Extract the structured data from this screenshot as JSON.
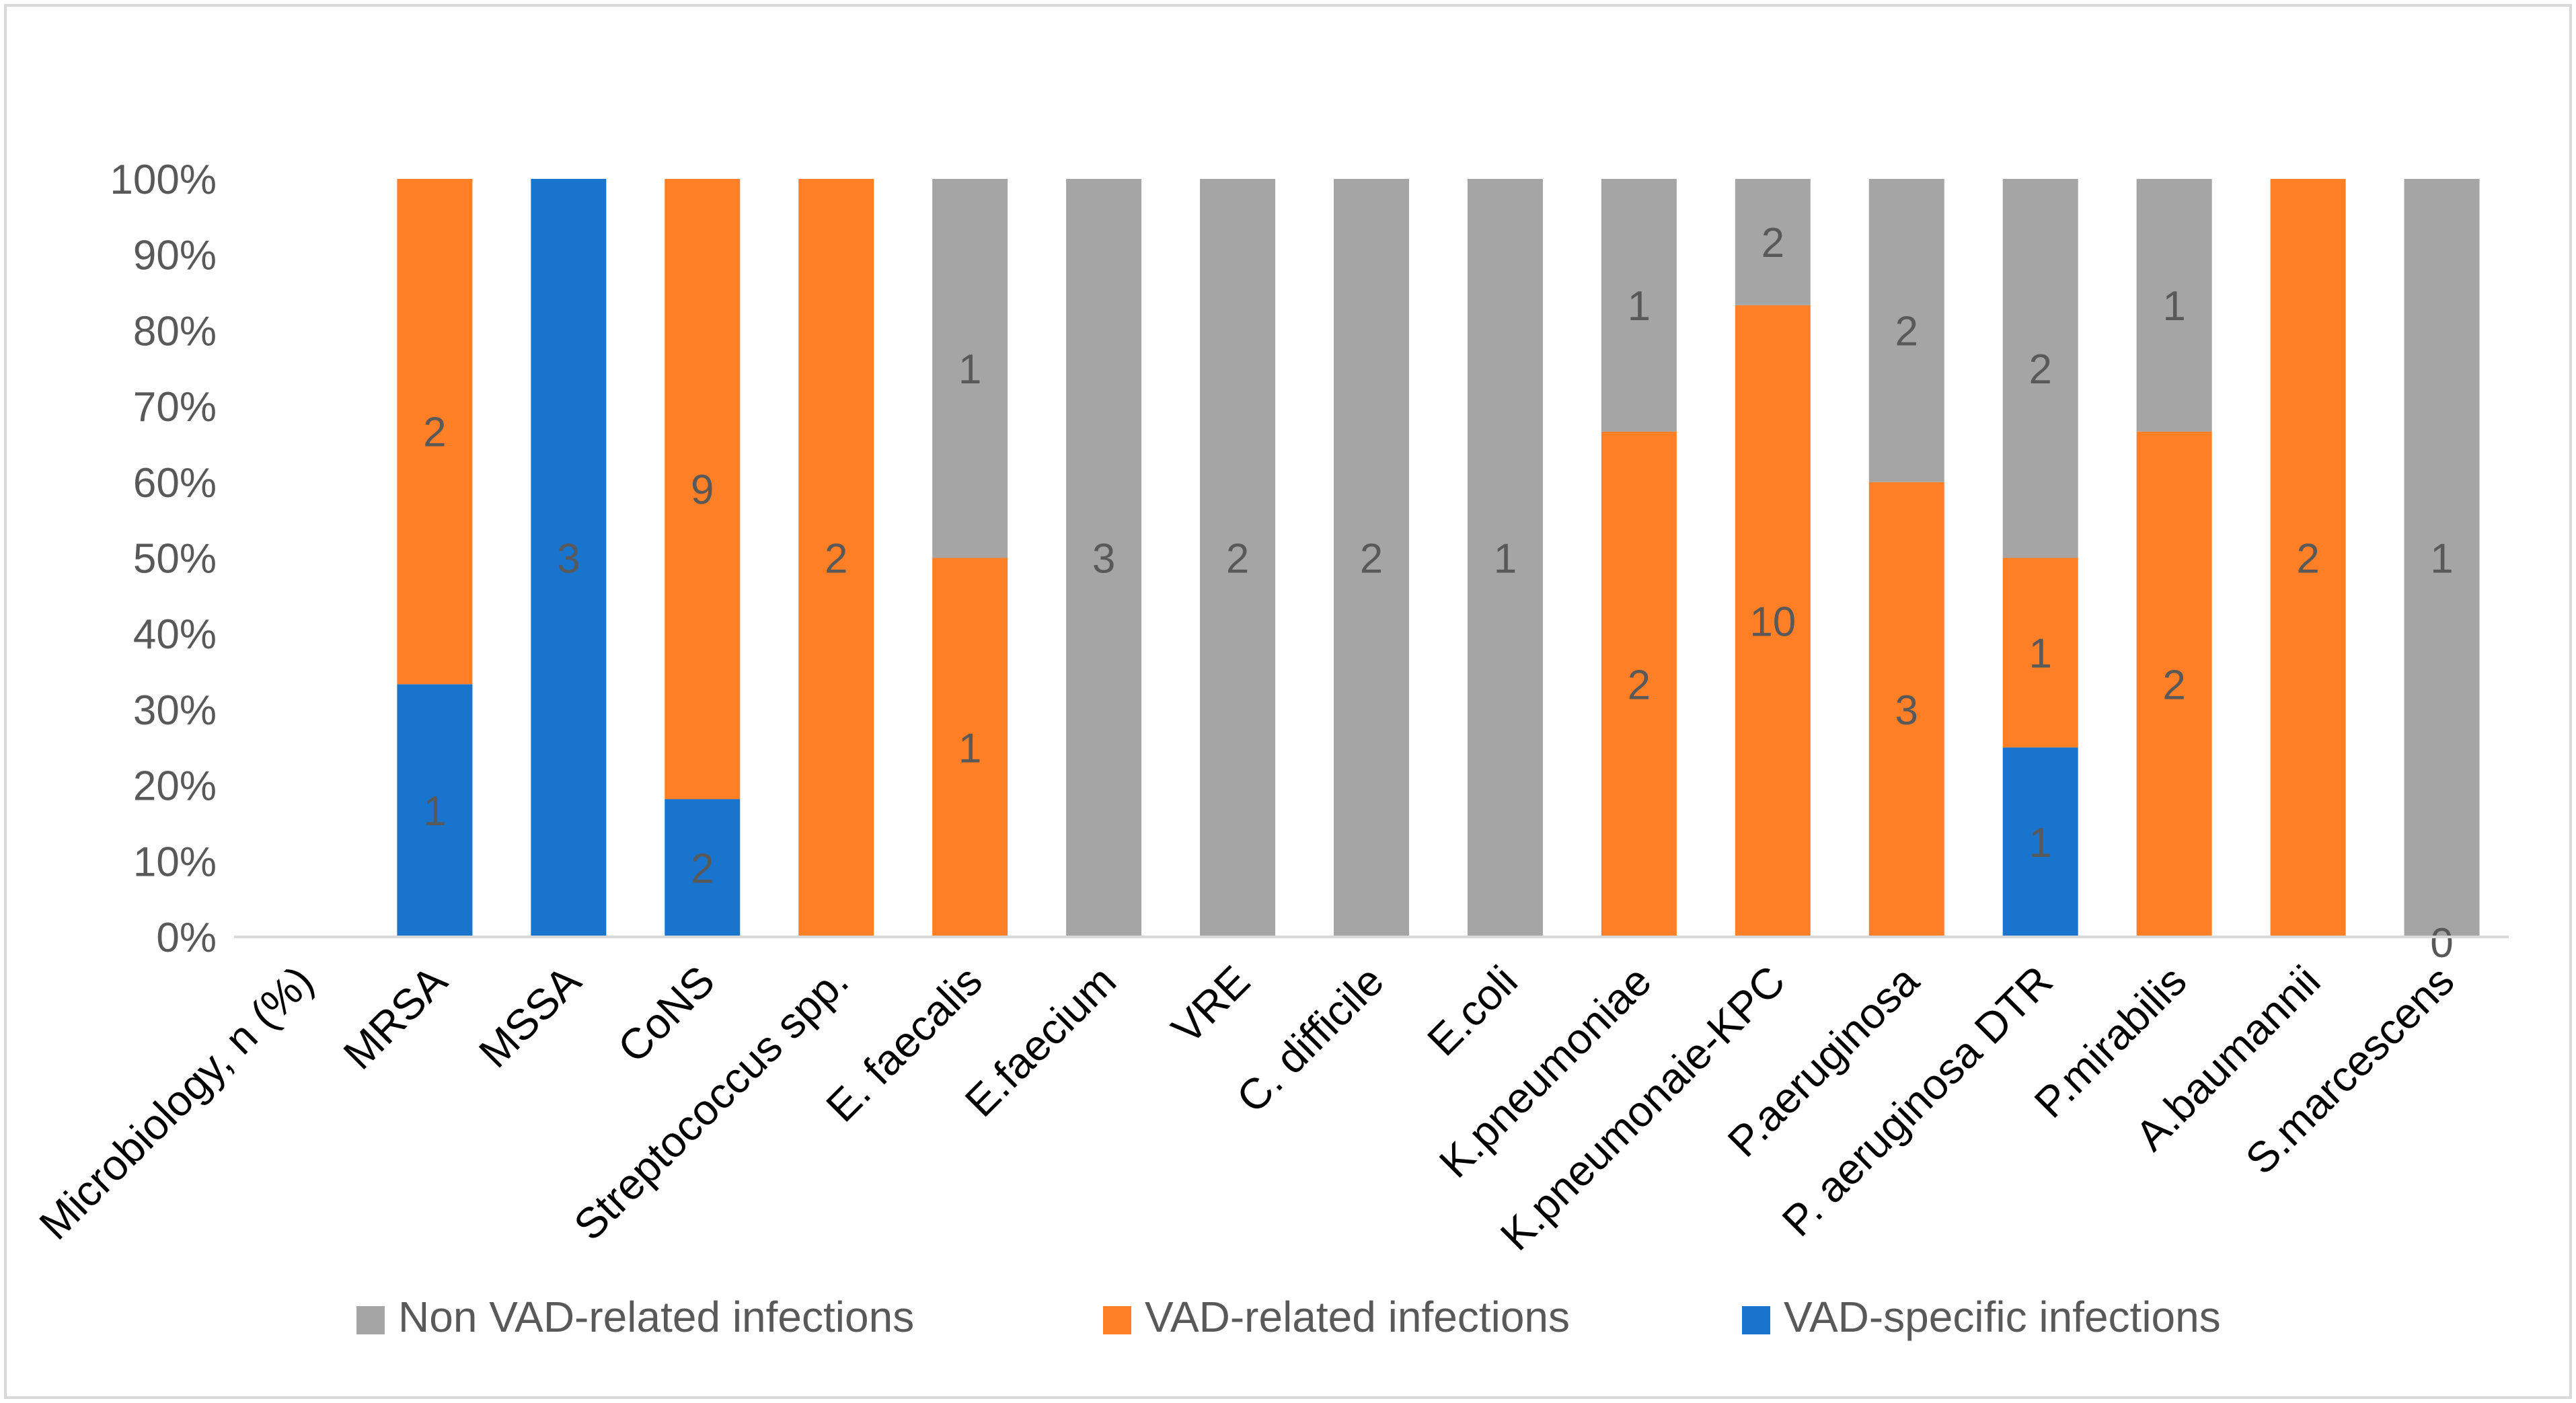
{
  "chart_data": {
    "type": "bar",
    "stacked": true,
    "percent": true,
    "title": "",
    "xlabel": "",
    "ylabel": "",
    "ylim": [
      0,
      100
    ],
    "y_ticks": [
      "0%",
      "10%",
      "20%",
      "30%",
      "40%",
      "50%",
      "60%",
      "70%",
      "80%",
      "90%",
      "100%"
    ],
    "categories": [
      "Microbiology, n (%)",
      "MRSA",
      "MSSA",
      "CoNS",
      "Streptococcus spp.",
      "E. faecalis",
      "E.faecium",
      "VRE",
      "C. difficile",
      "E.coli",
      "K.pneumoniae",
      "K.pneumonaie-KPC",
      "P.aeruginosa",
      "P. aeruginosa DTR",
      "P.mirabilis",
      "A.baumannii",
      "S.marcescens"
    ],
    "series": [
      {
        "name": "VAD-specific infections",
        "color": "#1874CD",
        "values": [
          null,
          1,
          3,
          2,
          null,
          null,
          null,
          null,
          null,
          null,
          null,
          null,
          null,
          1,
          null,
          null,
          null
        ],
        "labels": [
          "",
          "1",
          "3",
          "2",
          "",
          "",
          "",
          "",
          "",
          "",
          "",
          "",
          "",
          "1",
          "",
          "",
          ""
        ]
      },
      {
        "name": "VAD-related infections",
        "color": "#FF7F27",
        "values": [
          null,
          2,
          null,
          9,
          2,
          1,
          null,
          null,
          null,
          null,
          2,
          10,
          3,
          1,
          2,
          2,
          null
        ],
        "labels": [
          "",
          "2",
          "",
          "9",
          "2",
          "1",
          "",
          "",
          "",
          "",
          "2",
          "10",
          "3",
          "1",
          "2",
          "2",
          ""
        ]
      },
      {
        "name": "Non VAD-related infections",
        "color": "#A5A5A5",
        "values": [
          null,
          null,
          null,
          null,
          null,
          1,
          3,
          2,
          2,
          1,
          1,
          2,
          2,
          2,
          1,
          null,
          1
        ],
        "labels": [
          "",
          "",
          "",
          "",
          "",
          "1",
          "3",
          "2",
          "2",
          "1",
          "1",
          "2",
          "2",
          "2",
          "1",
          "",
          "1"
        ]
      }
    ],
    "extra_labels": [
      {
        "category": "S.marcescens",
        "text": "0"
      }
    ],
    "legend": {
      "position": "bottom",
      "order": [
        "Non VAD-related infections",
        "VAD-related infections",
        "VAD-specific infections"
      ]
    }
  }
}
